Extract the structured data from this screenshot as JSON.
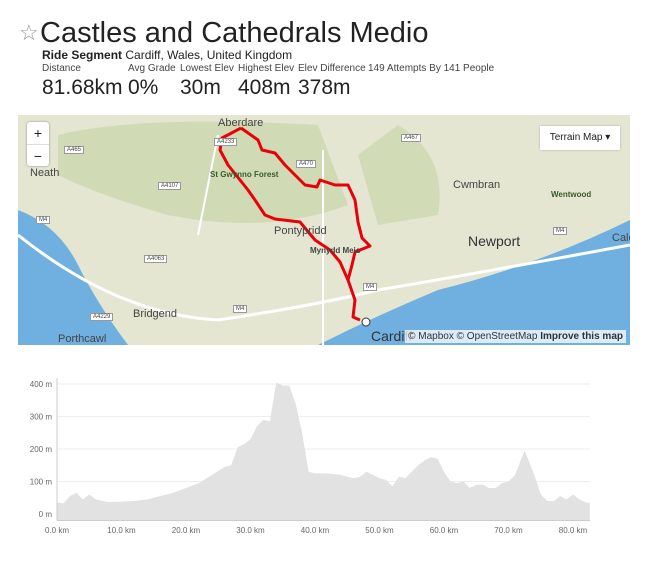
{
  "header": {
    "title": "Castles and Cathedrals Medio",
    "type": "Ride Segment",
    "location": "Cardiff, Wales, United Kingdom",
    "attempts": "149 Attempts By 141 People"
  },
  "stats": [
    {
      "label": "Distance",
      "value": "81.68km"
    },
    {
      "label": "Avg Grade",
      "value": "0%"
    },
    {
      "label": "Lowest Elev",
      "value": "30m"
    },
    {
      "label": "Highest Elev",
      "value": "408m"
    },
    {
      "label": "Elev Difference",
      "value": "378m"
    }
  ],
  "map": {
    "zoom_in": "+",
    "zoom_out": "−",
    "layer_select": "Terrain Map",
    "route_color": "#e8000b",
    "places": [
      "Aberdare",
      "St Gwynno Forest",
      "Neath",
      "Pontypridd",
      "Mynydd Meio",
      "Bridgend",
      "Porthcawl",
      "Cwmbran",
      "Wentwood",
      "Newport",
      "Cardiff",
      "Calc"
    ],
    "roads": [
      "A465",
      "A4233",
      "A470",
      "A4107",
      "M4",
      "A4063",
      "A4229",
      "M4",
      "A467",
      "M4",
      "M4"
    ],
    "attribution": {
      "mapbox": "© Mapbox",
      "osm": "© OpenStreetMap",
      "improve": "Improve this map"
    }
  },
  "chart_data": {
    "type": "area",
    "xlabel": "",
    "ylabel": "",
    "xlim": [
      0,
      82.6
    ],
    "ylim": [
      -20,
      450
    ],
    "x_ticks": [
      "0.0 km",
      "10.0 km",
      "20.0 km",
      "30.0 km",
      "40.0 km",
      "50.0 km",
      "60.0 km",
      "70.0 km",
      "80.0 km"
    ],
    "y_ticks": [
      "0 m",
      "100 m",
      "200 m",
      "300 m",
      "400 m"
    ],
    "grid": true,
    "color": "#e2e2e2",
    "x": [
      0,
      1,
      2,
      3,
      4,
      5,
      6,
      7,
      8,
      9,
      10,
      12,
      14,
      16,
      18,
      20,
      22,
      24,
      26,
      27,
      28,
      29,
      30,
      31,
      32,
      33,
      34,
      35,
      36,
      37,
      38,
      39,
      40,
      42,
      44,
      46,
      47,
      48,
      49,
      50,
      51,
      52,
      53,
      54,
      55,
      56,
      57,
      58,
      59,
      60,
      61,
      62,
      63,
      64,
      65,
      66,
      67,
      68,
      69,
      70,
      71,
      72,
      72.5,
      73,
      74,
      75,
      76,
      77,
      78,
      79,
      80,
      81,
      82,
      82.6
    ],
    "y": [
      35,
      33,
      55,
      65,
      45,
      60,
      45,
      40,
      37,
      38,
      38,
      40,
      45,
      55,
      65,
      80,
      95,
      120,
      145,
      150,
      205,
      215,
      230,
      270,
      290,
      285,
      405,
      395,
      395,
      340,
      250,
      130,
      125,
      125,
      120,
      110,
      115,
      130,
      120,
      110,
      105,
      85,
      115,
      110,
      130,
      150,
      165,
      175,
      170,
      130,
      100,
      95,
      100,
      80,
      90,
      90,
      80,
      80,
      95,
      100,
      120,
      170,
      195,
      170,
      120,
      60,
      40,
      40,
      55,
      45,
      60,
      45,
      35,
      35
    ]
  }
}
